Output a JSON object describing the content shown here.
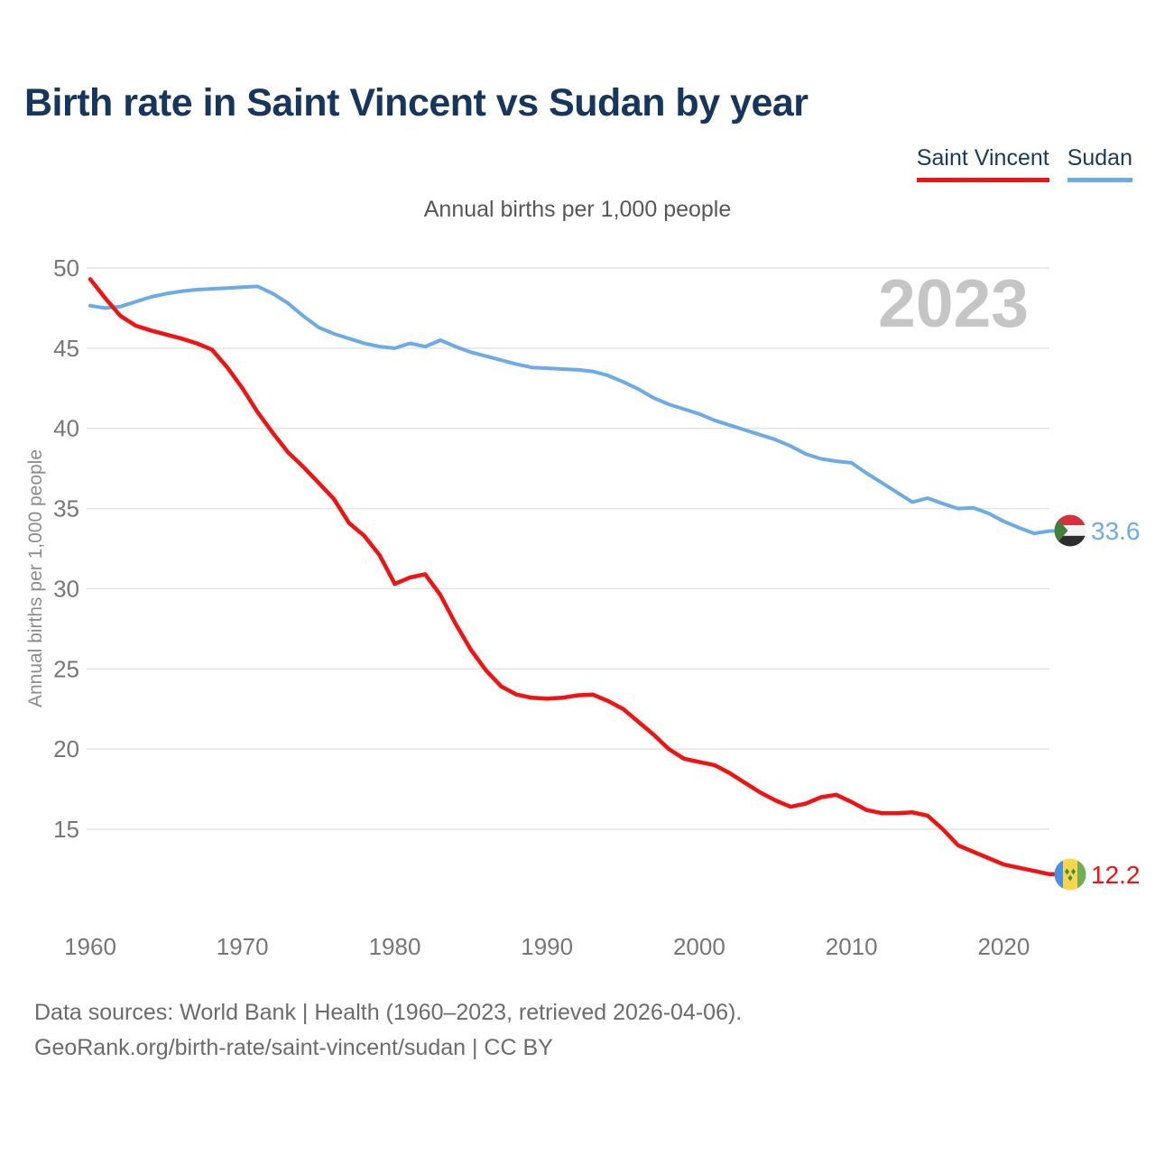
{
  "title": "Birth rate in Saint Vincent vs Sudan by year",
  "subtitle": "Annual births per 1,000 people",
  "watermark": "2023",
  "legend": {
    "items": [
      {
        "label": "Saint Vincent",
        "color": "#f21212"
      },
      {
        "label": "Sudan",
        "color": "#6babe8"
      }
    ]
  },
  "footer": {
    "line1": "Data sources: World Bank | Health (1960–2023, retrieved 2026-04-06).",
    "line2": "GeoRank.org/birth-rate/saint-vincent/sudan | CC BY"
  },
  "chart_data": {
    "type": "line",
    "title": "Birth rate in Saint Vincent vs Sudan by year",
    "ylabel": "Annual births per 1,000 people",
    "xlabel": "",
    "grid": true,
    "legend_position": "top-right",
    "ylim": [
      11,
      50
    ],
    "yticks": [
      15,
      20,
      25,
      30,
      35,
      40,
      45,
      50
    ],
    "xticks": [
      1960,
      1970,
      1980,
      1990,
      2000,
      2010,
      2020
    ],
    "x": [
      1960,
      1961,
      1962,
      1963,
      1964,
      1965,
      1966,
      1967,
      1968,
      1969,
      1970,
      1971,
      1972,
      1973,
      1974,
      1975,
      1976,
      1977,
      1978,
      1979,
      1980,
      1981,
      1982,
      1983,
      1984,
      1985,
      1986,
      1987,
      1988,
      1989,
      1990,
      1991,
      1992,
      1993,
      1994,
      1995,
      1996,
      1997,
      1998,
      1999,
      2000,
      2001,
      2002,
      2003,
      2004,
      2005,
      2006,
      2007,
      2008,
      2009,
      2010,
      2011,
      2012,
      2013,
      2014,
      2015,
      2016,
      2017,
      2018,
      2019,
      2020,
      2021,
      2022,
      2023
    ],
    "series": [
      {
        "name": "Saint Vincent",
        "color": "#f21212",
        "end_label": "12.2",
        "flag": "saint-vincent",
        "values": [
          49.3,
          48.1,
          47.0,
          46.4,
          46.1,
          45.85,
          45.6,
          45.3,
          44.9,
          43.8,
          42.5,
          41.0,
          39.7,
          38.5,
          37.6,
          36.6,
          35.6,
          34.1,
          33.3,
          32.1,
          30.3,
          30.7,
          30.9,
          29.6,
          27.8,
          26.2,
          24.9,
          23.9,
          23.4,
          23.2,
          23.15,
          23.2,
          23.35,
          23.4,
          23.0,
          22.5,
          21.7,
          20.9,
          20.0,
          19.4,
          19.2,
          19.0,
          18.5,
          17.9,
          17.3,
          16.8,
          16.4,
          16.6,
          17.0,
          17.15,
          16.7,
          16.2,
          16.0,
          16.0,
          16.05,
          15.85,
          15.0,
          14.0,
          13.6,
          13.2,
          12.8,
          12.6,
          12.4,
          12.2
        ]
      },
      {
        "name": "Sudan",
        "color": "#6babe8",
        "end_label": "33.6",
        "flag": "sudan",
        "values": [
          47.65,
          47.5,
          47.6,
          47.9,
          48.2,
          48.4,
          48.55,
          48.65,
          48.7,
          48.75,
          48.8,
          48.85,
          48.4,
          47.8,
          47.0,
          46.3,
          45.9,
          45.6,
          45.3,
          45.1,
          45.0,
          45.3,
          45.1,
          45.5,
          45.1,
          44.75,
          44.5,
          44.25,
          44.0,
          43.8,
          43.75,
          43.7,
          43.65,
          43.55,
          43.3,
          42.9,
          42.45,
          41.9,
          41.5,
          41.2,
          40.9,
          40.5,
          40.2,
          39.9,
          39.6,
          39.3,
          38.9,
          38.4,
          38.1,
          37.95,
          37.85,
          37.2,
          36.6,
          36.0,
          35.4,
          35.65,
          35.3,
          35.0,
          35.05,
          34.7,
          34.2,
          33.8,
          33.45,
          33.6
        ]
      }
    ]
  }
}
